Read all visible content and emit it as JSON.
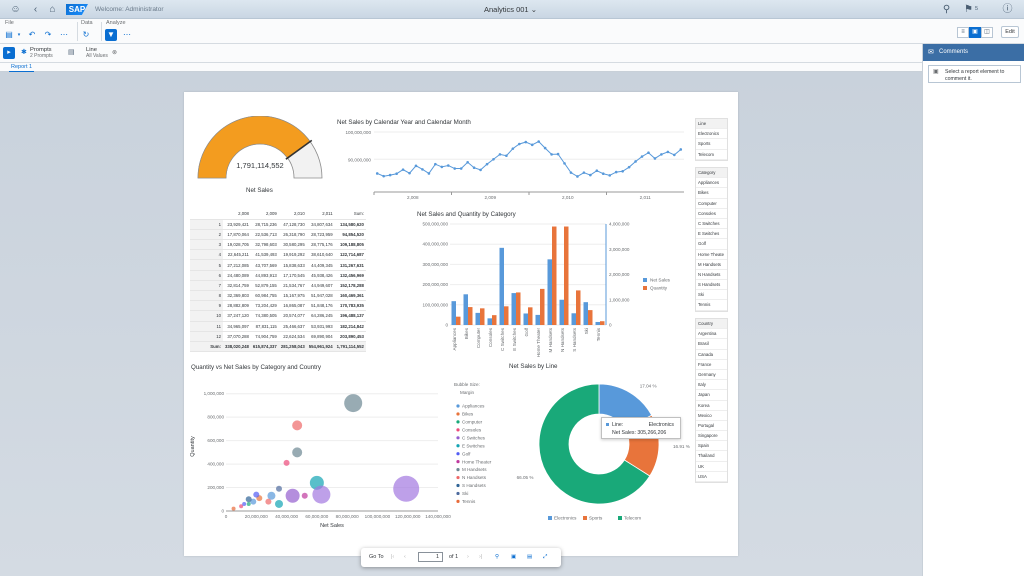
{
  "shell": {
    "welcome": "Welcome: Administrator",
    "app_title": "Analytics 001",
    "notif_count": "5"
  },
  "toolbar": {
    "file_label": "File",
    "data_label": "Data",
    "analyze_label": "Analyze",
    "edit_label": "Edit"
  },
  "prompts": {
    "title": "Prompts",
    "subtitle": "2 Prompts",
    "line_title": "Line",
    "line_value": "All Values"
  },
  "tab": {
    "label": "Report 1"
  },
  "comments": {
    "title": "Comments",
    "hint": "Select a report element to comment it."
  },
  "gauge": {
    "value": "1,791,114,552",
    "label": "Net Sales",
    "fill_fraction": 0.8
  },
  "line_chart": {
    "title": "Net Sales by Calendar Year and Calendar Month",
    "y_ticks": [
      "100,000,000",
      "90,000,000"
    ],
    "x_ticks": [
      "2,008",
      "2,009",
      "2,010",
      "2,011"
    ]
  },
  "table": {
    "headers": [
      "",
      "2,008",
      "2,009",
      "2,010",
      "2,011",
      "Sum:"
    ],
    "rows": [
      [
        "1",
        "23,929,421",
        "28,715,236",
        "47,128,730",
        "34,807,634",
        "134,580,620"
      ],
      [
        "2",
        "17,870,064",
        "22,536,713",
        "26,318,790",
        "28,723,959",
        "94,854,520"
      ],
      [
        "3",
        "19,028,705",
        "32,798,603",
        "30,580,295",
        "28,775,176",
        "109,188,805"
      ],
      [
        "4",
        "22,645,211",
        "41,539,493",
        "19,919,292",
        "38,610,640",
        "122,714,687"
      ],
      [
        "5",
        "27,212,085",
        "43,707,569",
        "15,838,633",
        "44,409,345",
        "131,267,631"
      ],
      [
        "6",
        "24,480,089",
        "44,893,913",
        "17,170,545",
        "45,938,426",
        "132,456,969"
      ],
      [
        "7",
        "32,814,759",
        "52,879,155",
        "21,534,767",
        "44,949,607",
        "152,178,288"
      ],
      [
        "8",
        "32,369,803",
        "60,984,755",
        "15,167,975",
        "51,947,028",
        "160,469,361"
      ],
      [
        "9",
        "28,882,809",
        "73,204,429",
        "16,865,087",
        "51,848,176",
        "170,783,935"
      ],
      [
        "10",
        "37,247,120",
        "74,380,505",
        "20,574,077",
        "64,286,245",
        "196,488,137"
      ],
      [
        "11",
        "34,965,097",
        "87,831,115",
        "25,466,637",
        "53,931,993",
        "182,214,842"
      ],
      [
        "12",
        "37,070,288",
        "74,904,759",
        "22,624,534",
        "69,890,904",
        "203,890,453"
      ]
    ],
    "total": [
      "Sum:",
      "338,020,248",
      "615,874,337",
      "281,258,043",
      "554,961,924",
      "1,791,114,552"
    ]
  },
  "bar_chart": {
    "title": "Net Sales and Quantity by Category",
    "left_ticks": [
      "500,000,000",
      "400,000,000",
      "300,000,000",
      "200,000,000",
      "100,000,000",
      "0"
    ],
    "right_ticks": [
      "4,000,000",
      "3,000,000",
      "2,000,000",
      "1,000,000",
      "0"
    ],
    "legend_sales": "Net Sales",
    "legend_qty": "Quantity"
  },
  "chart_data": [
    {
      "type": "bar",
      "title": "Net Sales and Quantity by Category",
      "categories": [
        "Appliances",
        "Bikes",
        "Computer",
        "Consoles",
        "C Switches",
        "E Switches",
        "Golf",
        "Home Theater",
        "M Handsets",
        "N Handsets",
        "S Handsets",
        "Ski",
        "Tennis"
      ],
      "series": [
        {
          "name": "Net Sales",
          "axis": "left",
          "values": [
            118000000,
            152000000,
            60000000,
            33000000,
            382000000,
            158000000,
            57000000,
            50000000,
            325000000,
            125000000,
            58000000,
            113000000,
            15000000
          ]
        },
        {
          "name": "Quantity",
          "axis": "right",
          "values": [
            330000,
            710000,
            660000,
            390000,
            740000,
            1290000,
            700000,
            1430000,
            3900000,
            3900000,
            1370000,
            590000,
            150000
          ]
        }
      ],
      "ylim": [
        0,
        500000000
      ],
      "y2lim": [
        0,
        4000000
      ]
    },
    {
      "type": "line",
      "title": "Net Sales by Calendar Year and Calendar Month",
      "x": [
        "2008-01",
        "2008-02",
        "2008-03",
        "2008-04",
        "2008-05",
        "2008-06",
        "2008-07",
        "2008-08",
        "2008-09",
        "2008-10",
        "2008-11",
        "2008-12",
        "2009-01",
        "2009-02",
        "2009-03",
        "2009-04",
        "2009-05",
        "2009-06",
        "2009-07",
        "2009-08",
        "2009-09",
        "2009-10",
        "2009-11",
        "2009-12",
        "2010-01",
        "2010-02",
        "2010-03",
        "2010-04",
        "2010-05",
        "2010-06",
        "2010-07",
        "2010-08",
        "2010-09",
        "2010-10",
        "2010-11",
        "2010-12",
        "2011-01",
        "2011-02",
        "2011-03",
        "2011-04",
        "2011-05",
        "2011-06",
        "2011-07",
        "2011-08",
        "2011-09",
        "2011-10",
        "2011-11",
        "2011-12"
      ],
      "series": [
        {
          "name": "Net Sales",
          "values": [
            84800000,
            83800000,
            84200000,
            84700000,
            86200000,
            84900000,
            87600000,
            86300000,
            84800000,
            88200000,
            87200000,
            87700000,
            86600000,
            86600000,
            88900000,
            86900000,
            86100000,
            88200000,
            90000000,
            91800000,
            91300000,
            93900000,
            95600000,
            96300000,
            95300000,
            96500000,
            94100000,
            91800000,
            91900000,
            88500000,
            85100000,
            83700000,
            85100000,
            84200000,
            85800000,
            84700000,
            84100000,
            85300000,
            85600000,
            87100000,
            89200000,
            91000000,
            92400000,
            90300000,
            91800000,
            92700000,
            91600000,
            93600000
          ]
        }
      ],
      "ylim": [
        78000000,
        100000000
      ]
    },
    {
      "type": "scatter",
      "title": "Quantity vs Net Sales by Category and Country",
      "xlabel": "Net Sales",
      "ylabel": "Quantity",
      "x_ticks": [
        "0",
        "20,000,000",
        "40,000,000",
        "60,000,000",
        "80,000,000",
        "100,000,000",
        "120,000,000",
        "140,000,000"
      ],
      "y_ticks": [
        "0",
        "200,000",
        "400,000",
        "600,000",
        "800,000",
        "1,000,000"
      ],
      "bubble_size_label": "Bubble Size:",
      "bubble_size_measure": "Margin",
      "series": [
        {
          "name": "Appliances",
          "color": "#5899da",
          "points": [
            [
              18000000,
              80000,
              3
            ],
            [
              30000000,
              130000,
              4
            ]
          ]
        },
        {
          "name": "Bikes",
          "color": "#e8743b",
          "points": [
            [
              22000000,
              110000,
              3
            ]
          ]
        },
        {
          "name": "Computer",
          "color": "#19a979",
          "points": [
            [
              15000000,
              60000,
              2
            ]
          ]
        },
        {
          "name": "Consoles",
          "color": "#ed4a7b",
          "points": [
            [
              40000000,
              410000,
              3
            ],
            [
              10000000,
              40000,
              2
            ]
          ]
        },
        {
          "name": "C Switches",
          "color": "#945ecf",
          "points": [
            [
              44000000,
              130000,
              7
            ]
          ]
        },
        {
          "name": "E Switches",
          "color": "#13a4b4",
          "points": [
            [
              60000000,
              240000,
              7
            ],
            [
              35000000,
              60000,
              4
            ]
          ]
        },
        {
          "name": "Golf",
          "color": "#525df4",
          "points": [
            [
              20000000,
              140000,
              3
            ],
            [
              12000000,
              60000,
              2
            ]
          ]
        },
        {
          "name": "Home Theater",
          "color": "#bf399e",
          "points": [
            [
              52000000,
              130000,
              3
            ]
          ]
        },
        {
          "name": "M Handsets",
          "color": "#6c8893",
          "points": [
            [
              84000000,
              920000,
              9
            ],
            [
              47000000,
              500000,
              5
            ]
          ]
        },
        {
          "name": "N Handsets",
          "color": "#ee6868",
          "points": [
            [
              47000000,
              730000,
              5
            ],
            [
              28000000,
              80000,
              3
            ]
          ]
        },
        {
          "name": "S Handsets",
          "color": "#2f6497",
          "points": [
            [
              15000000,
              100000,
              3
            ]
          ]
        },
        {
          "name": "Ski",
          "color": "#4e6b9e",
          "points": [
            [
              35000000,
              190000,
              3
            ]
          ]
        },
        {
          "name": "Tennis",
          "color": "#e86b3a",
          "points": [
            [
              5000000,
              20000,
              2
            ]
          ]
        },
        {
          "name": "",
          "color": "#a277e0",
          "points": [
            [
              119000000,
              190000,
              13
            ],
            [
              63000000,
              140000,
              9
            ]
          ]
        }
      ]
    },
    {
      "type": "pie",
      "title": "Net Sales by Line",
      "slices": [
        {
          "label": "Electronics",
          "value": 17.04,
          "color": "#5899da"
        },
        {
          "label": "Sports",
          "value": 16.91,
          "color": "#e8743b"
        },
        {
          "label": "Telecom",
          "value": 66.05,
          "color": "#19a979"
        }
      ],
      "labels": [
        "17.04 %",
        "16.91 %",
        "66.05 %"
      ]
    }
  ],
  "tooltip": {
    "line_key": "Line:",
    "line_val": "Electronics",
    "sales_key": "Net Sales:",
    "sales_val": "305,266,206"
  },
  "filters": {
    "line": {
      "title": "Line",
      "items": [
        "Electronics",
        "Sports",
        "Telecom"
      ]
    },
    "category": {
      "title": "Category",
      "items": [
        "Appliances",
        "Bikes",
        "Computer",
        "Consoles",
        "C Switches",
        "E Switches",
        "Golf",
        "Home Theate",
        "M Handsets",
        "N Handsets",
        "S Handsets",
        "Ski",
        "Tennis"
      ]
    },
    "country": {
      "title": "Country",
      "items": [
        "Argentina",
        "Brasil",
        "Canada",
        "France",
        "Germany",
        "Italy",
        "Japan",
        "Korea",
        "Mexico",
        "Portugal",
        "Singapore",
        "Spain",
        "Thailand",
        "UK",
        "USA"
      ]
    }
  },
  "pager": {
    "go_to": "Go To",
    "page": "1",
    "of": "of 1"
  },
  "colors": {
    "accent": "#0a6ed1",
    "gauge": "#f39c1f",
    "shell": "#c9d6e3"
  }
}
